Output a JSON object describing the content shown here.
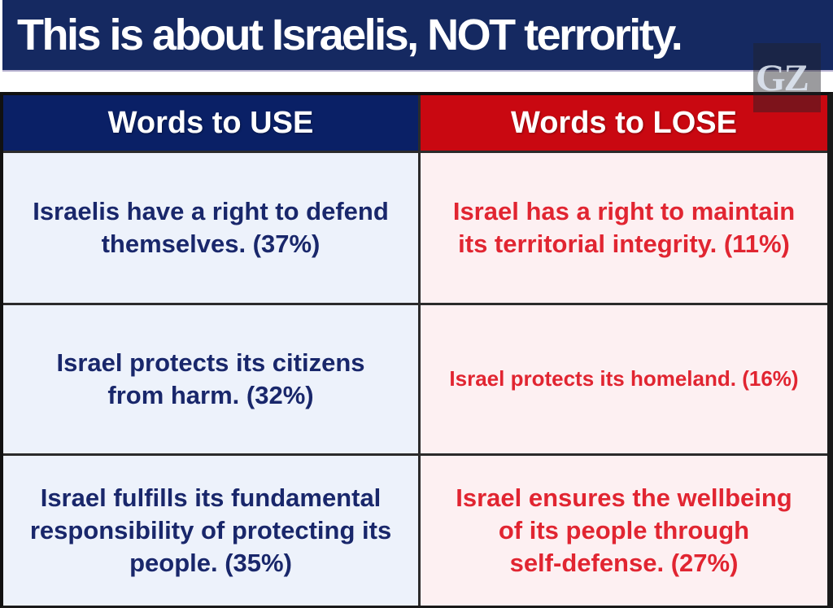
{
  "title": "This is about Israelis, NOT terrority.",
  "watermark": "GZ",
  "table": {
    "headers": [
      {
        "label": "Words to USE"
      },
      {
        "label": "Words to LOSE"
      }
    ],
    "rows": [
      {
        "use": "Israelis have a right to defend\nthemselves. (37%)",
        "lose": "Israel has a right to maintain\nits territorial integrity. (11%)"
      },
      {
        "use": "Israel protects its citizens\nfrom harm. (32%)",
        "lose": "Israel protects its homeland. (16%)"
      },
      {
        "use": "Israel fulfills its fundamental\nresponsibility of protecting its\npeople. (35%)",
        "lose": "Israel ensures the wellbeing\nof its people through\nself-defense. (27%)"
      }
    ]
  },
  "colors": {
    "title_bar_navy": "#152961",
    "header_navy": "#0a2066",
    "header_red": "#c90811",
    "use_cell_bg": "#edf2fb",
    "lose_cell_bg": "#fdf0f2",
    "use_text": "#19276b",
    "lose_text": "#e12531",
    "border": "#1a1a1a"
  }
}
